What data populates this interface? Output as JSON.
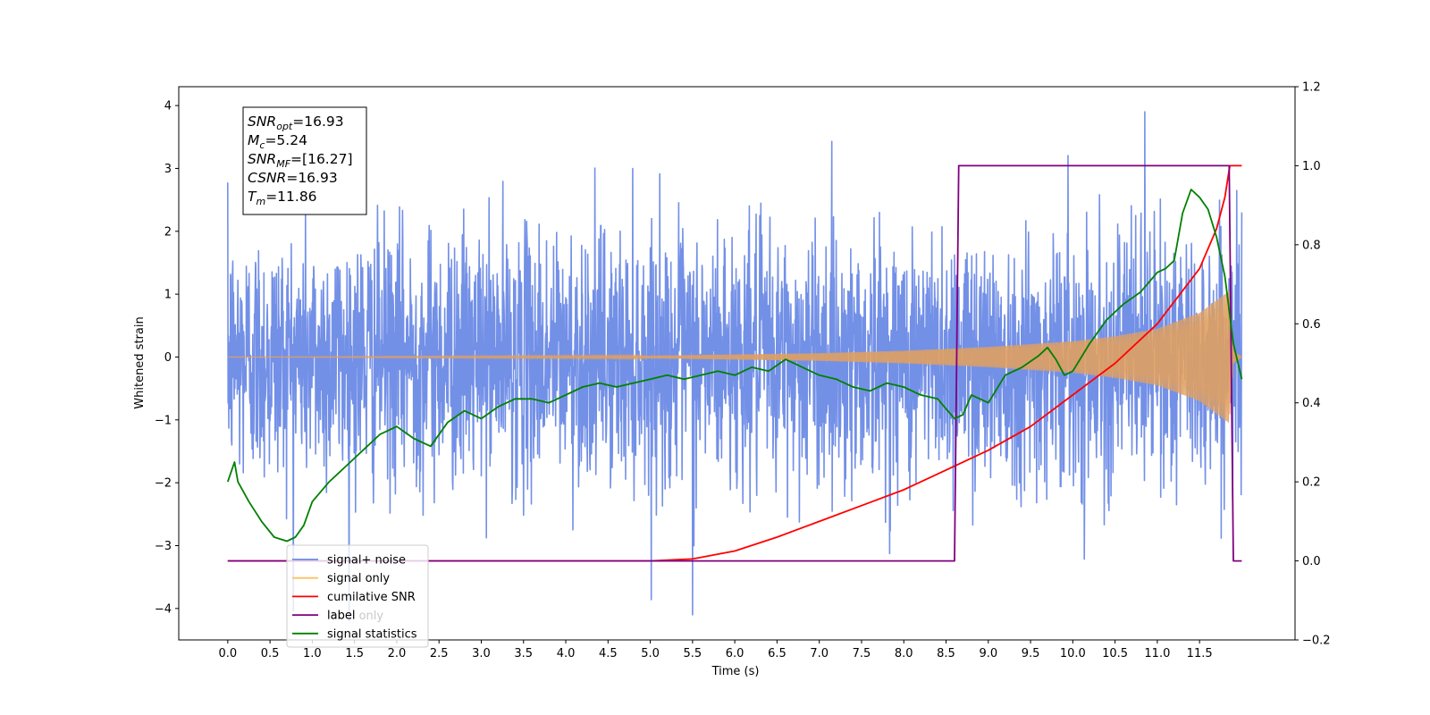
{
  "chart_data": {
    "type": "line",
    "title": "",
    "xlabel": "Time (s)",
    "ylabel": "Whitened strain",
    "y2label": "",
    "xlim": [
      -0.58,
      12.63
    ],
    "ylim": [
      -4.5,
      4.3
    ],
    "y2lim": [
      -0.2,
      1.2
    ],
    "x_ticks": [
      0.0,
      0.5,
      1.0,
      1.5,
      2.0,
      2.5,
      3.0,
      3.5,
      4.0,
      4.5,
      5.0,
      5.5,
      6.0,
      6.5,
      7.0,
      7.5,
      8.0,
      8.5,
      9.0,
      9.5,
      10.0,
      10.5,
      11.0,
      11.5
    ],
    "x_tick_labels": [
      "0.0",
      "0.5",
      "1.0",
      "1.5",
      "2.0",
      "2.5",
      "3.0",
      "3.5",
      "4.0",
      "4.5",
      "5.0",
      "5.5",
      "6.0",
      "6.5",
      "7.0",
      "7.5",
      "8.0",
      "8.5",
      "9.0",
      "9.5",
      "10.0",
      "10.5",
      "11.0",
      "11.5"
    ],
    "y_ticks": [
      -4,
      -3,
      -2,
      -1,
      0,
      1,
      2,
      3,
      4
    ],
    "y_tick_labels": [
      "−4",
      "−3",
      "−2",
      "−1",
      "0",
      "1",
      "2",
      "3",
      "4"
    ],
    "y2_ticks": [
      -0.2,
      0.0,
      0.2,
      0.4,
      0.6,
      0.8,
      1.0,
      1.2
    ],
    "y2_tick_labels": [
      "−0.2",
      "0.0",
      "0.2",
      "0.4",
      "0.6",
      "0.8",
      "1.0",
      "1.2"
    ],
    "grid": false,
    "legend_position": "bottom-left",
    "legend": [
      {
        "label": "signal+ noise",
        "color": "#6b8ae6"
      },
      {
        "label": "signal only",
        "color": "#ffbf60"
      },
      {
        "label": "cumilative SNR",
        "color": "#ff0000"
      },
      {
        "label": "label",
        "color": "#800080"
      },
      {
        "label": "signal statistics",
        "color": "#008000"
      }
    ],
    "hidden_legend_remnants": [
      "label only",
      "noise"
    ],
    "annotation": {
      "lines": [
        {
          "sym": "SNR",
          "sub": "opt",
          "val": "=16.93"
        },
        {
          "sym": "M",
          "sub": "c",
          "val": "=5.24"
        },
        {
          "sym": "SNR",
          "sub": "MF",
          "val": "=[16.27]"
        },
        {
          "sym": "CSNR",
          "sub": "",
          "val": "=16.93"
        },
        {
          "sym": "T",
          "sub": "m",
          "val": "=11.86"
        }
      ]
    },
    "series": [
      {
        "name": "signal+ noise",
        "axis": "left",
        "color": "#6b8ae6",
        "kind": "noise",
        "x_range": [
          0.0,
          12.0
        ],
        "sigma": 1.0,
        "peak_extremes": [
          3.9,
          -4.1
        ]
      },
      {
        "name": "signal only",
        "axis": "left",
        "color": "#e0a060",
        "kind": "chirp",
        "x_range": [
          0.0,
          12.0
        ],
        "envelope": [
          [
            0.0,
            0.0
          ],
          [
            5.0,
            0.02
          ],
          [
            7.0,
            0.06
          ],
          [
            8.0,
            0.1
          ],
          [
            9.0,
            0.16
          ],
          [
            10.0,
            0.25
          ],
          [
            10.5,
            0.33
          ],
          [
            11.0,
            0.45
          ],
          [
            11.5,
            0.7
          ],
          [
            11.85,
            1.05
          ],
          [
            11.9,
            0.1
          ],
          [
            12.0,
            0.0
          ]
        ]
      },
      {
        "name": "cumilative SNR",
        "axis": "right",
        "color": "#ff0000",
        "x": [
          0.0,
          4.0,
          5.0,
          5.5,
          6.0,
          6.5,
          7.0,
          7.5,
          8.0,
          8.5,
          9.0,
          9.5,
          10.0,
          10.5,
          11.0,
          11.5,
          11.7,
          11.8,
          11.85,
          11.86,
          12.0
        ],
        "y": [
          0.0,
          0.0,
          0.0,
          0.005,
          0.025,
          0.06,
          0.1,
          0.14,
          0.18,
          0.23,
          0.28,
          0.34,
          0.42,
          0.5,
          0.6,
          0.74,
          0.84,
          0.92,
          0.99,
          1.0,
          1.0
        ]
      },
      {
        "name": "label",
        "axis": "right",
        "color": "#800080",
        "x": [
          0.0,
          8.6,
          8.65,
          11.85,
          11.9,
          12.0
        ],
        "y": [
          0.0,
          0.0,
          1.0,
          1.0,
          0.0,
          0.0
        ]
      },
      {
        "name": "signal statistics",
        "axis": "right",
        "color": "#008000",
        "x": [
          0.0,
          0.08,
          0.12,
          0.25,
          0.4,
          0.55,
          0.7,
          0.8,
          0.9,
          1.0,
          1.2,
          1.4,
          1.6,
          1.8,
          2.0,
          2.2,
          2.4,
          2.6,
          2.8,
          3.0,
          3.2,
          3.4,
          3.6,
          3.8,
          4.0,
          4.2,
          4.4,
          4.6,
          4.8,
          5.0,
          5.2,
          5.4,
          5.6,
          5.8,
          6.0,
          6.2,
          6.4,
          6.6,
          6.8,
          7.0,
          7.2,
          7.4,
          7.6,
          7.8,
          8.0,
          8.2,
          8.4,
          8.6,
          8.7,
          8.8,
          8.9,
          9.0,
          9.2,
          9.4,
          9.6,
          9.7,
          9.8,
          9.9,
          10.0,
          10.2,
          10.4,
          10.6,
          10.8,
          11.0,
          11.1,
          11.2,
          11.3,
          11.4,
          11.5,
          11.6,
          11.7,
          11.8,
          11.9,
          12.0
        ],
        "y": [
          0.2,
          0.25,
          0.2,
          0.15,
          0.1,
          0.06,
          0.05,
          0.06,
          0.09,
          0.15,
          0.2,
          0.24,
          0.28,
          0.32,
          0.34,
          0.31,
          0.29,
          0.35,
          0.38,
          0.36,
          0.39,
          0.41,
          0.41,
          0.4,
          0.42,
          0.44,
          0.45,
          0.44,
          0.45,
          0.46,
          0.47,
          0.46,
          0.47,
          0.48,
          0.47,
          0.49,
          0.48,
          0.51,
          0.49,
          0.47,
          0.46,
          0.44,
          0.43,
          0.45,
          0.44,
          0.42,
          0.41,
          0.36,
          0.37,
          0.42,
          0.41,
          0.4,
          0.47,
          0.49,
          0.52,
          0.54,
          0.51,
          0.47,
          0.48,
          0.55,
          0.61,
          0.65,
          0.68,
          0.73,
          0.74,
          0.76,
          0.88,
          0.94,
          0.92,
          0.89,
          0.82,
          0.72,
          0.55,
          0.46
        ]
      }
    ]
  }
}
